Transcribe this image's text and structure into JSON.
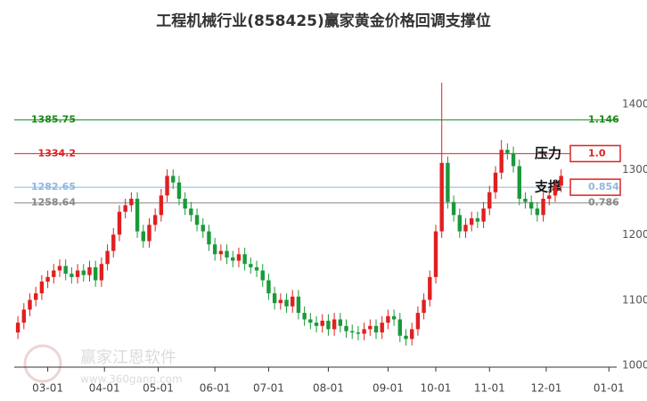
{
  "chart_data": {
    "type": "candlestick",
    "title": "工程机械行业(858425)赢家黄金价格回调支撑位",
    "up_color": "#e02020",
    "down_color": "#1a9a3a",
    "ylim": [
      1000,
      1454
    ],
    "yticks": [
      1000,
      1100,
      1200,
      1300,
      1400
    ],
    "xlim": [
      -3,
      101.5
    ],
    "xticks": [
      {
        "value": 5,
        "label": "03-01"
      },
      {
        "value": 14.5,
        "label": "04-01"
      },
      {
        "value": 23.5,
        "label": "05-01"
      },
      {
        "value": 33,
        "label": "06-01"
      },
      {
        "value": 42,
        "label": "07-01"
      },
      {
        "value": 52,
        "label": "08-01"
      },
      {
        "value": 62,
        "label": "09-01"
      },
      {
        "value": 70,
        "label": "10-01"
      },
      {
        "value": 79,
        "label": "11-01"
      },
      {
        "value": 88.5,
        "label": "12-01"
      },
      {
        "value": 99,
        "label": "01-01"
      }
    ],
    "open": [
      1060,
      1075,
      1095,
      1110,
      1120,
      1138,
      1145,
      1155,
      1162,
      1150,
      1145,
      1155,
      1148,
      1160,
      1140,
      1165,
      1185,
      1210,
      1245,
      1255,
      1265,
      1215,
      1200,
      1225,
      1240,
      1270,
      1300,
      1290,
      1265,
      1250,
      1240,
      1225,
      1215,
      1195,
      1180,
      1185,
      1175,
      1170,
      1180,
      1165,
      1160,
      1155,
      1140,
      1120,
      1105,
      1110,
      1100,
      1115,
      1090,
      1080,
      1075,
      1070,
      1078,
      1065,
      1080,
      1070,
      1062,
      1060,
      1058,
      1065,
      1070,
      1060,
      1075,
      1085,
      1080,
      1055,
      1050,
      1065,
      1090,
      1110,
      1145,
      1215,
      1320,
      1260,
      1240,
      1215,
      1225,
      1235,
      1230,
      1250,
      1275,
      1305,
      1340,
      1335,
      1315,
      1265,
      1260,
      1250,
      1240,
      1265,
      1270,
      1285
    ],
    "close": [
      1075,
      1095,
      1110,
      1120,
      1138,
      1145,
      1155,
      1162,
      1150,
      1145,
      1155,
      1148,
      1160,
      1140,
      1165,
      1185,
      1210,
      1245,
      1255,
      1265,
      1215,
      1200,
      1225,
      1240,
      1270,
      1300,
      1290,
      1265,
      1250,
      1240,
      1225,
      1215,
      1195,
      1180,
      1185,
      1175,
      1170,
      1180,
      1165,
      1160,
      1155,
      1140,
      1120,
      1105,
      1110,
      1100,
      1115,
      1090,
      1080,
      1075,
      1070,
      1078,
      1065,
      1080,
      1070,
      1062,
      1060,
      1058,
      1065,
      1070,
      1060,
      1075,
      1085,
      1080,
      1055,
      1050,
      1065,
      1090,
      1110,
      1145,
      1215,
      1320,
      1260,
      1240,
      1215,
      1225,
      1235,
      1230,
      1250,
      1275,
      1305,
      1340,
      1335,
      1315,
      1265,
      1260,
      1250,
      1240,
      1265,
      1270,
      1285,
      1300
    ],
    "high": [
      1085,
      1105,
      1120,
      1130,
      1148,
      1155,
      1165,
      1172,
      1172,
      1160,
      1165,
      1165,
      1170,
      1170,
      1175,
      1195,
      1220,
      1255,
      1265,
      1275,
      1275,
      1225,
      1235,
      1250,
      1280,
      1310,
      1310,
      1300,
      1275,
      1260,
      1250,
      1235,
      1225,
      1205,
      1195,
      1195,
      1185,
      1190,
      1190,
      1175,
      1170,
      1165,
      1150,
      1130,
      1120,
      1120,
      1125,
      1125,
      1100,
      1090,
      1085,
      1088,
      1088,
      1090,
      1090,
      1080,
      1072,
      1070,
      1075,
      1080,
      1080,
      1085,
      1095,
      1095,
      1090,
      1065,
      1075,
      1100,
      1120,
      1155,
      1225,
      1443,
      1330,
      1270,
      1250,
      1235,
      1245,
      1245,
      1260,
      1285,
      1315,
      1355,
      1350,
      1345,
      1325,
      1275,
      1270,
      1260,
      1275,
      1280,
      1295,
      1310
    ],
    "low": [
      1050,
      1065,
      1085,
      1100,
      1110,
      1128,
      1135,
      1145,
      1140,
      1135,
      1135,
      1138,
      1138,
      1130,
      1130,
      1155,
      1175,
      1200,
      1235,
      1245,
      1205,
      1190,
      1190,
      1215,
      1230,
      1260,
      1280,
      1255,
      1240,
      1230,
      1215,
      1205,
      1185,
      1170,
      1170,
      1165,
      1160,
      1160,
      1155,
      1150,
      1145,
      1130,
      1110,
      1095,
      1095,
      1090,
      1090,
      1080,
      1070,
      1065,
      1060,
      1060,
      1055,
      1055,
      1060,
      1052,
      1050,
      1048,
      1048,
      1055,
      1050,
      1050,
      1065,
      1070,
      1045,
      1040,
      1040,
      1055,
      1080,
      1100,
      1135,
      1205,
      1250,
      1230,
      1205,
      1205,
      1215,
      1220,
      1220,
      1240,
      1265,
      1295,
      1325,
      1305,
      1255,
      1250,
      1240,
      1230,
      1230,
      1255,
      1260,
      1275
    ],
    "levels": [
      {
        "price": 1385.75,
        "ratio": 1.146,
        "color": "#1a8a1a"
      },
      {
        "price": 1334.2,
        "ratio": {
          "value": 1,
          "label": "1.0"
        },
        "color": "#e02020",
        "annotation": "压力"
      },
      {
        "price": 1282.65,
        "ratio": 0.854,
        "color": "#8fb8e0",
        "annotation": "支撑"
      },
      {
        "price": 1258.64,
        "ratio": 0.786,
        "color": "#888888"
      }
    ],
    "watermark": "赢家江恩软件",
    "watermark_url": "www.360gann.com"
  }
}
